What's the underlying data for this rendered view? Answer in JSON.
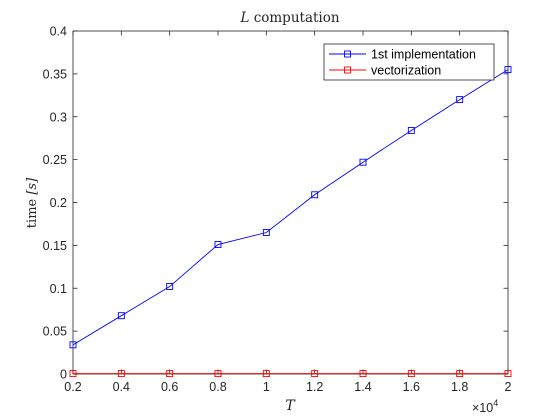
{
  "chart_data": {
    "type": "line",
    "title": {
      "italic": "L",
      "rest": " computation"
    },
    "xlabel": "T",
    "ylabel": {
      "text": "time ",
      "unit": "[s]"
    },
    "x_multiplier": {
      "base": "×10",
      "exp": "4"
    },
    "xlim": [
      0.2,
      2
    ],
    "ylim": [
      0,
      0.4
    ],
    "xticks": [
      "0.2",
      "0.4",
      "0.6",
      "0.8",
      "1",
      "1.2",
      "1.4",
      "1.6",
      "1.8",
      "2"
    ],
    "yticks": [
      "0",
      "0.05",
      "0.1",
      "0.15",
      "0.2",
      "0.25",
      "0.3",
      "0.35",
      "0.4"
    ],
    "x": [
      0.2,
      0.4,
      0.6,
      0.8,
      1.0,
      1.2,
      1.4,
      1.6,
      1.8,
      2.0
    ],
    "series": [
      {
        "name": "1st implementation",
        "color": "#0000ff",
        "marker": "square",
        "values": [
          0.034,
          0.068,
          0.102,
          0.151,
          0.165,
          0.209,
          0.247,
          0.284,
          0.32,
          0.355
        ]
      },
      {
        "name": "vectorization",
        "color": "#ff0000",
        "marker": "square",
        "values": [
          0.0005,
          0.0005,
          0.0005,
          0.0005,
          0.0005,
          0.0005,
          0.0005,
          0.0005,
          0.0005,
          0.0005
        ]
      }
    ],
    "grid": false,
    "legend_position": "top-right"
  }
}
